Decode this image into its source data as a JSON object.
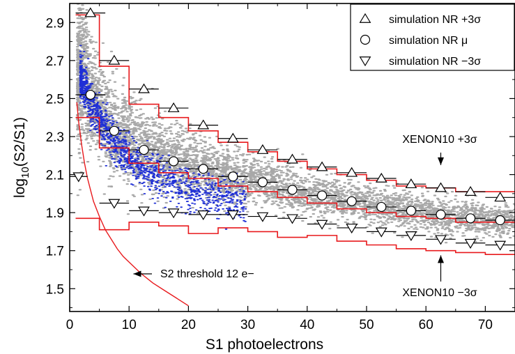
{
  "chart_data": {
    "type": "scatter",
    "xlabel": "S1 photoelectrons",
    "ylabel": {
      "base": "log",
      "sub": "10",
      "rest": "(S2/S1)"
    },
    "xlim": [
      0,
      75
    ],
    "ylim": [
      1.38,
      3.0
    ],
    "xticks": [
      0,
      10,
      20,
      30,
      40,
      50,
      60,
      70
    ],
    "yticks": [
      1.5,
      1.7,
      1.9,
      2.1,
      2.3,
      2.5,
      2.7,
      2.9
    ],
    "grid": false,
    "legend": {
      "position": "top-right",
      "entries": [
        {
          "marker": "triangle-up",
          "label": "simulation NR +3σ"
        },
        {
          "marker": "circle",
          "label": "simulation NR μ"
        },
        {
          "marker": "triangle-down",
          "label": "simulation NR −3σ"
        }
      ]
    },
    "series": [
      {
        "name": "simulation NR +3σ",
        "marker": "triangle-up",
        "points": [
          [
            3.5,
            2.95
          ],
          [
            7.5,
            2.7
          ],
          [
            12.5,
            2.55
          ],
          [
            17.5,
            2.45
          ],
          [
            22.5,
            2.36
          ],
          [
            27.5,
            2.29
          ],
          [
            32.5,
            2.23
          ],
          [
            37.5,
            2.18
          ],
          [
            42.5,
            2.14
          ],
          [
            47.5,
            2.11
          ],
          [
            52.5,
            2.08
          ],
          [
            57.5,
            2.05
          ],
          [
            62.5,
            2.03
          ],
          [
            67.5,
            2.01
          ],
          [
            72.5,
            1.98
          ]
        ]
      },
      {
        "name": "simulation NR μ",
        "marker": "circle",
        "points": [
          [
            3.5,
            2.52
          ],
          [
            7.5,
            2.33
          ],
          [
            12.5,
            2.23
          ],
          [
            17.5,
            2.17
          ],
          [
            22.5,
            2.13
          ],
          [
            27.5,
            2.09
          ],
          [
            32.5,
            2.06
          ],
          [
            37.5,
            2.02
          ],
          [
            42.5,
            1.99
          ],
          [
            47.5,
            1.96
          ],
          [
            52.5,
            1.93
          ],
          [
            57.5,
            1.91
          ],
          [
            62.5,
            1.89
          ],
          [
            67.5,
            1.87
          ],
          [
            72.5,
            1.86
          ]
        ]
      },
      {
        "name": "simulation NR −3σ",
        "marker": "triangle-down",
        "points": [
          [
            1.5,
            2.09
          ],
          [
            7.5,
            1.95
          ],
          [
            12.5,
            1.91
          ],
          [
            17.5,
            1.9
          ],
          [
            22.5,
            1.89
          ],
          [
            27.5,
            1.89
          ],
          [
            32.5,
            1.88
          ],
          [
            37.5,
            1.87
          ],
          [
            42.5,
            1.84
          ],
          [
            47.5,
            1.82
          ],
          [
            52.5,
            1.8
          ],
          [
            57.5,
            1.78
          ],
          [
            62.5,
            1.76
          ],
          [
            67.5,
            1.74
          ],
          [
            72.5,
            1.73
          ]
        ]
      }
    ],
    "xenon10_bands": {
      "edges": [
        1,
        5,
        10,
        15,
        20,
        25,
        30,
        35,
        40,
        45,
        50,
        55,
        60,
        65,
        70,
        75
      ],
      "plus3sigma": [
        2.94,
        2.67,
        2.47,
        2.4,
        2.33,
        2.27,
        2.22,
        2.17,
        2.13,
        2.1,
        2.07,
        2.04,
        2.03,
        2.01,
        2.01
      ],
      "mean": [
        2.4,
        2.24,
        2.16,
        2.11,
        2.08,
        2.04,
        2.01,
        1.98,
        1.95,
        1.92,
        1.9,
        1.88,
        1.87,
        1.85,
        1.85
      ],
      "minus3sigma": [
        1.87,
        1.81,
        1.85,
        1.83,
        1.79,
        1.82,
        1.8,
        1.77,
        1.78,
        1.75,
        1.73,
        1.71,
        1.7,
        1.69,
        1.68
      ]
    },
    "s2_threshold_curve": {
      "x": [
        1.2,
        1.5,
        2,
        2.5,
        3,
        4,
        5,
        6,
        7,
        8,
        9,
        10,
        12,
        14,
        16,
        18,
        20
      ],
      "y": [
        2.48,
        2.38,
        2.26,
        2.16,
        2.08,
        1.96,
        1.88,
        1.81,
        1.76,
        1.71,
        1.67,
        1.64,
        1.58,
        1.53,
        1.49,
        1.45,
        1.41
      ]
    },
    "annotations": [
      {
        "text": "XENON10 +3σ",
        "points_to": [
          62.5,
          2.15
        ]
      },
      {
        "text": "XENON10 −3σ",
        "points_to": [
          62.5,
          1.69
        ]
      },
      {
        "text": "S2 threshold 12 e−",
        "points_to": [
          10.5,
          1.58
        ]
      }
    ],
    "colors": {
      "band": "#e8191c",
      "threshold": "#e8191c",
      "sim_scatter": "#a8a8a8",
      "data_scatter": "#1f2fd6",
      "marker_fill": "#ffffff",
      "marker_stroke": "#000000"
    }
  }
}
